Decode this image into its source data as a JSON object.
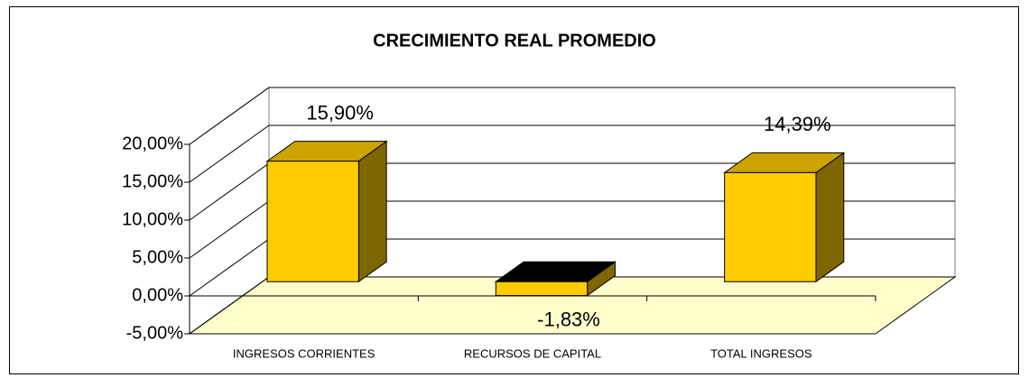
{
  "chart_data": {
    "type": "bar3d",
    "title": "CRECIMIENTO REAL PROMEDIO",
    "categories": [
      "INGRESOS CORRIENTES",
      "RECURSOS DE CAPITAL",
      "TOTAL INGRESOS"
    ],
    "values": [
      15.9,
      -1.83,
      14.39
    ],
    "value_labels": [
      "15,90%",
      "-1,83%",
      "14,39%"
    ],
    "color": "#ffcc00",
    "ylim": [
      -5,
      20
    ],
    "yticks": [
      {
        "value": -5,
        "label": "-5,00%"
      },
      {
        "value": 0,
        "label": "0,00%"
      },
      {
        "value": 5,
        "label": "5,00%"
      },
      {
        "value": 10,
        "label": "10,00%"
      },
      {
        "value": 15,
        "label": "15,00%"
      },
      {
        "value": 20,
        "label": "20,00%"
      }
    ],
    "grid": true
  }
}
